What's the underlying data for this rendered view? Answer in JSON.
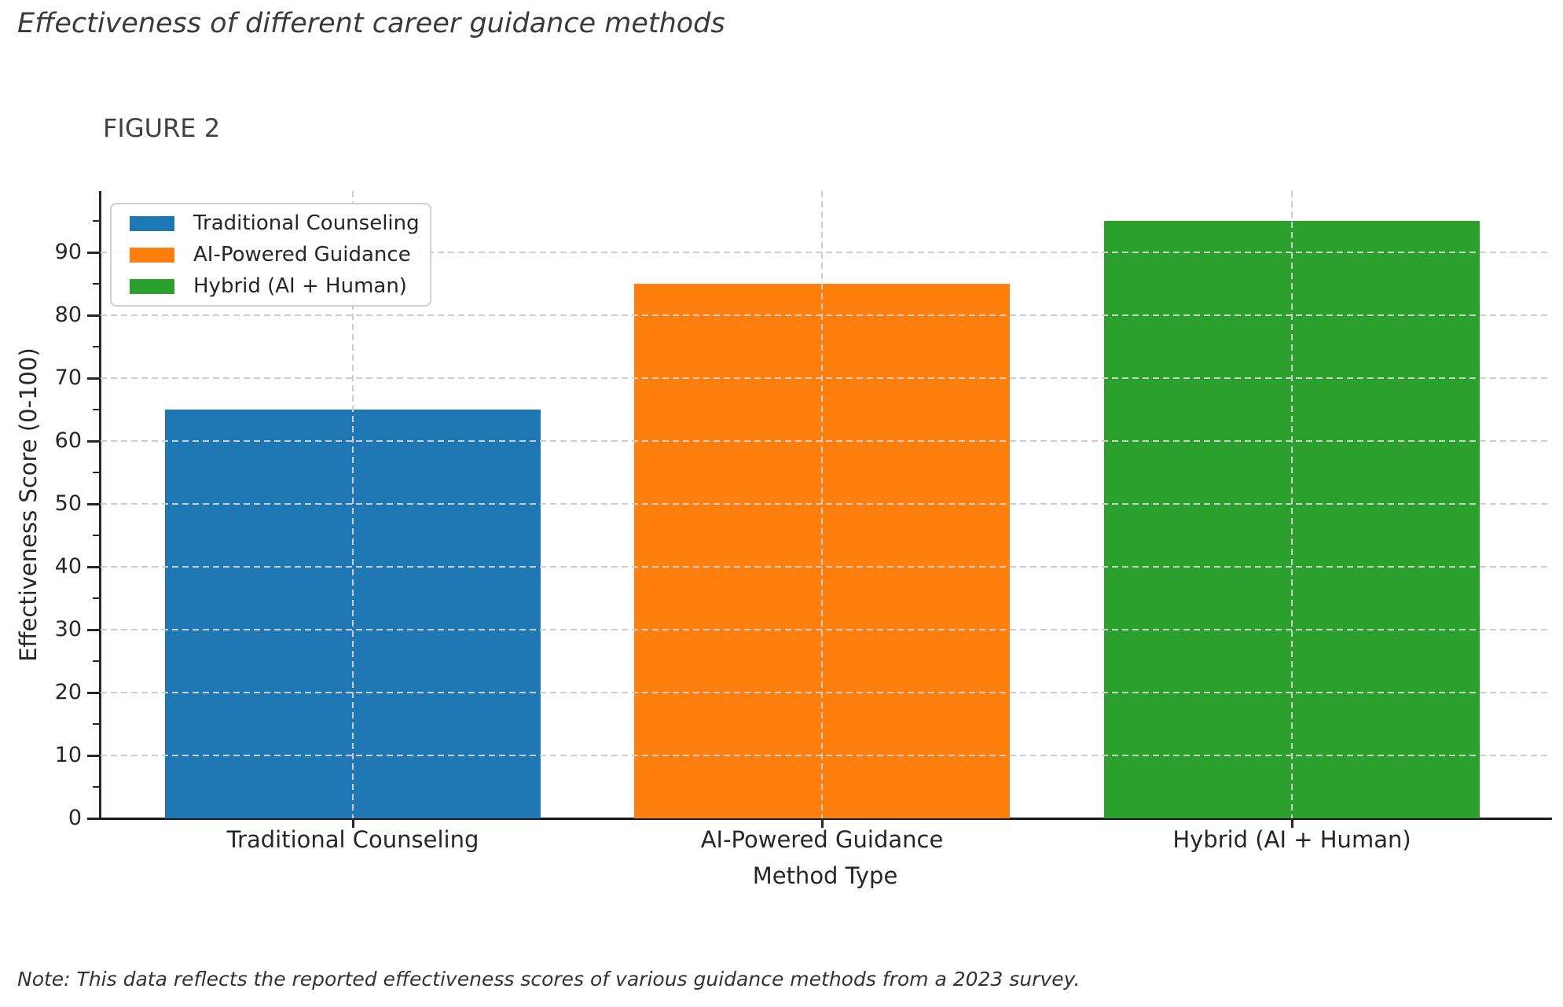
{
  "title": "Effectiveness of different career guidance methods",
  "figure_label": "FIGURE 2",
  "note": "Note: This data reflects the reported effectiveness scores of various guidance methods from a 2023 survey.",
  "chart_data": {
    "type": "bar",
    "figure_label": "FIGURE 2",
    "categories": [
      "Traditional Counseling",
      "AI-Powered Guidance",
      "Hybrid (AI + Human)"
    ],
    "values": [
      65,
      85,
      95
    ],
    "bar_colors": [
      "#1f77b4",
      "#ff7f0e",
      "#2ca02c"
    ],
    "xlabel": "Method Type",
    "ylabel": "Effectiveness Score (0-100)",
    "ylim": [
      0,
      100
    ],
    "yticks": [
      0,
      10,
      20,
      30,
      40,
      50,
      60,
      70,
      80,
      90
    ],
    "grid": true,
    "grid_style": "dashed",
    "legend": {
      "position": "upper-left",
      "entries": [
        {
          "label": "Traditional Counseling",
          "color": "#1f77b4"
        },
        {
          "label": "AI-Powered Guidance",
          "color": "#ff7f0e"
        },
        {
          "label": "Hybrid (AI + Human)",
          "color": "#2ca02c"
        }
      ]
    }
  }
}
